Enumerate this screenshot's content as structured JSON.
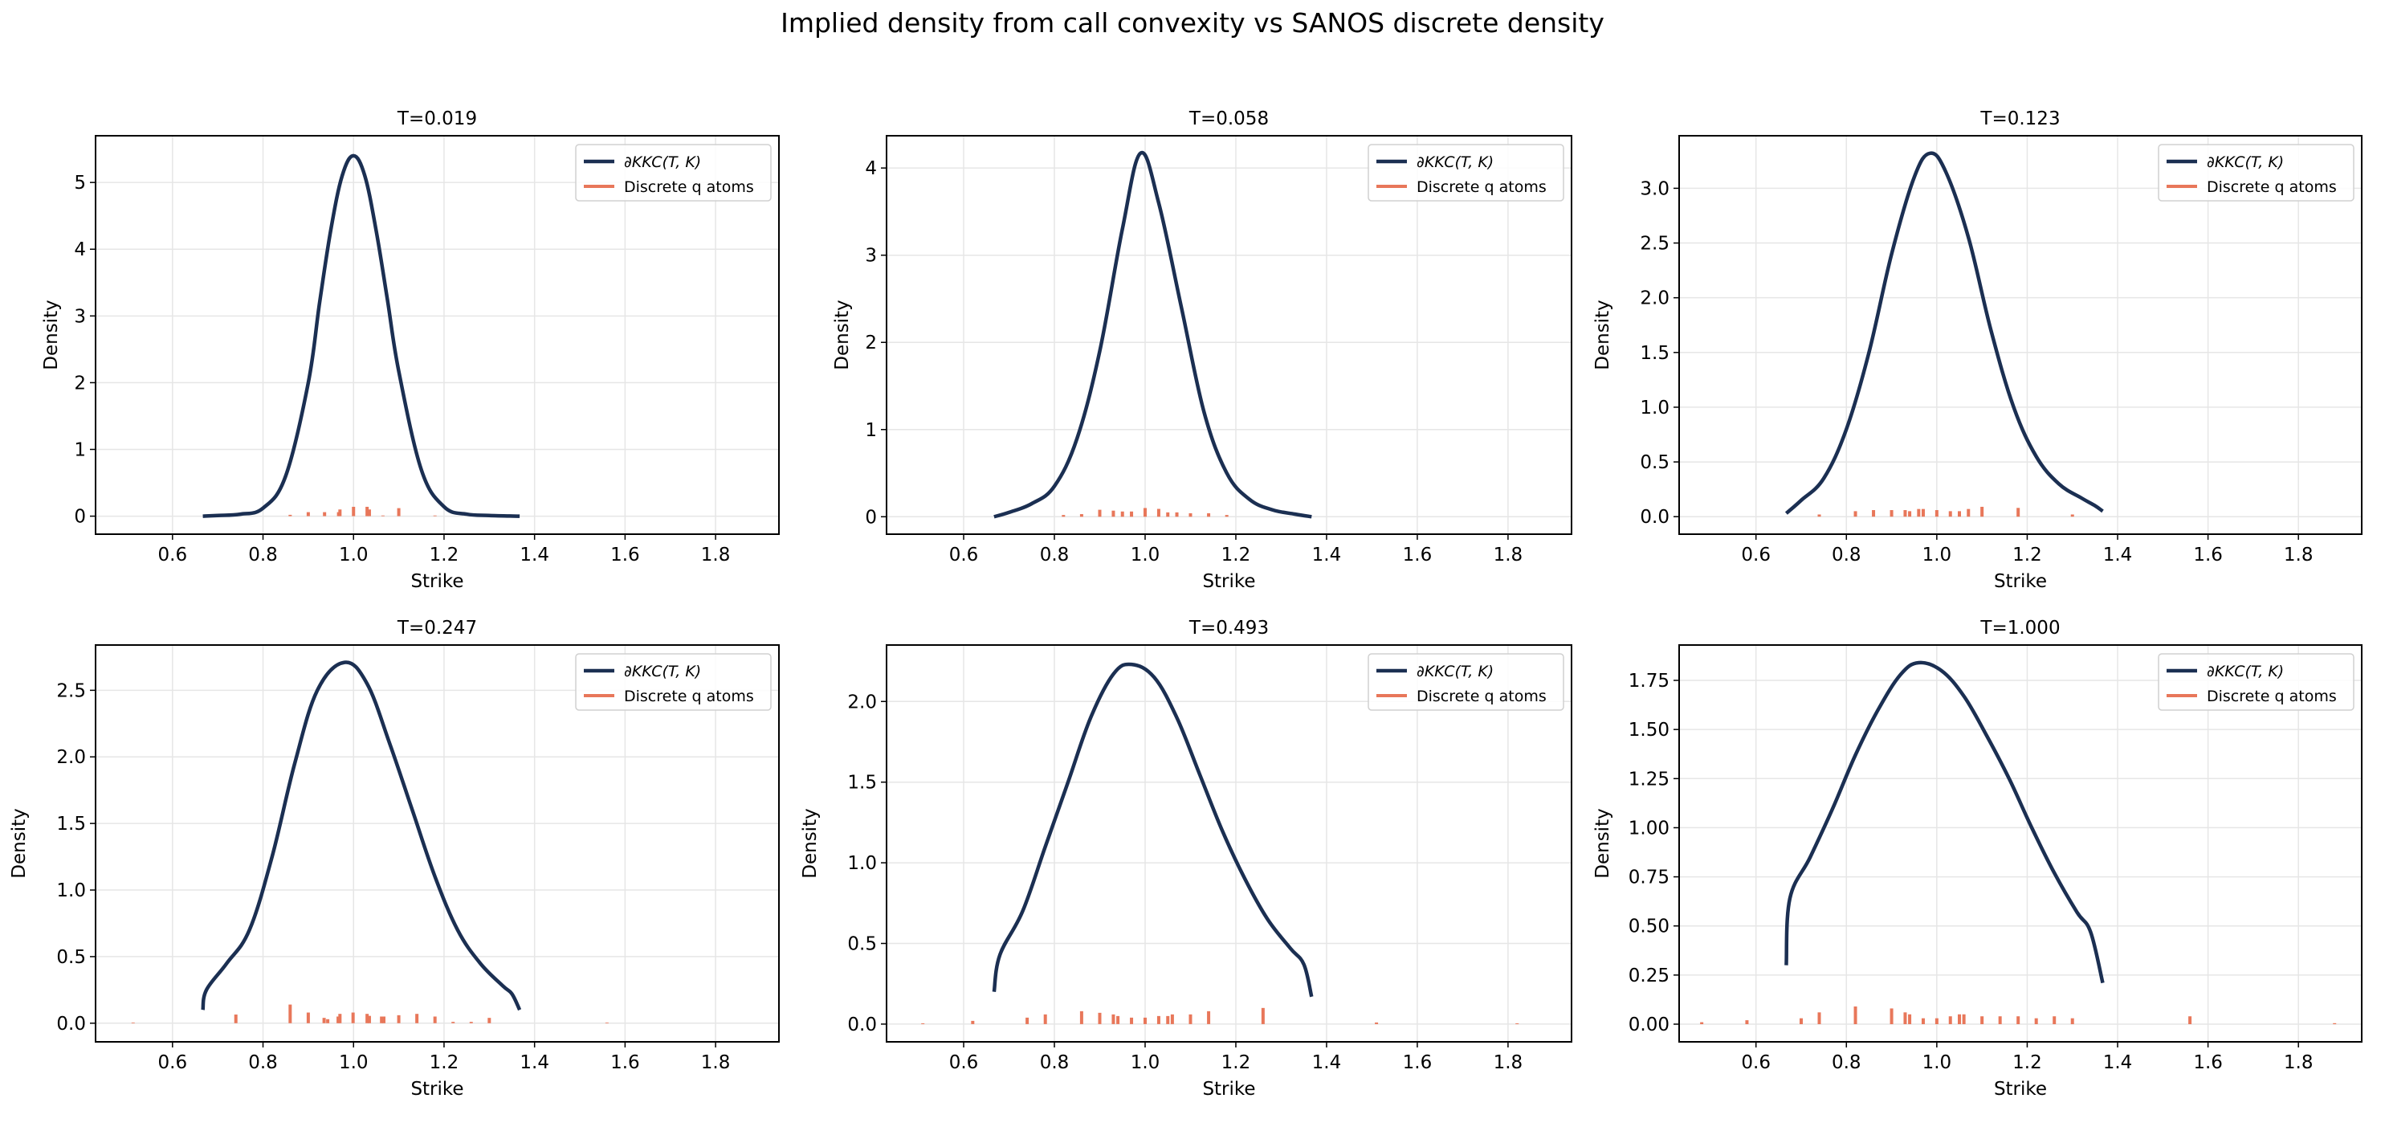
{
  "title": "Implied density from call convexity vs SANOS discrete density",
  "colors": {
    "curve": "#1b2f52",
    "atoms": "#e8775a",
    "grid": "#e6e6e6"
  },
  "chart_data": [
    {
      "type": "line",
      "title": "T=0.019",
      "xlabel": "Strike",
      "ylabel": "Density",
      "xlim": [
        0.43,
        1.94
      ],
      "ylim": [
        -0.27,
        5.7
      ],
      "xticks": [
        0.6,
        0.8,
        1.0,
        1.2,
        1.4,
        1.6,
        1.8
      ],
      "xtick_labels": [
        "0.6",
        "0.8",
        "1.0",
        "1.2",
        "1.4",
        "1.6",
        "1.8"
      ],
      "yticks": [
        0,
        1,
        2,
        3,
        4,
        5
      ],
      "ytick_labels": [
        "0",
        "1",
        "2",
        "3",
        "4",
        "5"
      ],
      "grid": true,
      "legend": "top-right",
      "legend_entries": [
        "∂KKC(T, K)",
        "Discrete q atoms"
      ],
      "curve": {
        "x": [
          0.667,
          0.7,
          0.75,
          0.8,
          0.85,
          0.9,
          0.925,
          0.95,
          0.975,
          1.0,
          1.025,
          1.05,
          1.075,
          1.1,
          1.15,
          1.2,
          1.25,
          1.3,
          1.367
        ],
        "y": [
          0.0,
          0.01,
          0.03,
          0.12,
          0.6,
          2.0,
          3.2,
          4.3,
          5.1,
          5.4,
          5.1,
          4.28,
          3.24,
          2.17,
          0.69,
          0.14,
          0.03,
          0.01,
          0.0
        ]
      },
      "atoms": {
        "x": [
          0.86,
          0.9,
          0.936,
          0.967,
          0.97,
          1.0,
          1.03,
          1.035,
          1.065,
          1.1,
          1.18
        ],
        "y": [
          0.02,
          0.06,
          0.06,
          0.06,
          0.1,
          0.14,
          0.14,
          0.1,
          0.01,
          0.12,
          0.01
        ]
      }
    },
    {
      "type": "line",
      "title": "T=0.058",
      "xlabel": "Strike",
      "ylabel": "Density",
      "xlim": [
        0.43,
        1.94
      ],
      "ylim": [
        -0.2,
        4.37
      ],
      "xticks": [
        0.6,
        0.8,
        1.0,
        1.2,
        1.4,
        1.6,
        1.8
      ],
      "xtick_labels": [
        "0.6",
        "0.8",
        "1.0",
        "1.2",
        "1.4",
        "1.6",
        "1.8"
      ],
      "yticks": [
        0,
        1,
        2,
        3,
        4
      ],
      "ytick_labels": [
        "0",
        "1",
        "2",
        "3",
        "4"
      ],
      "grid": true,
      "legend": "top-right",
      "legend_entries": [
        "∂KKC(T, K)",
        "Discrete q atoms"
      ],
      "curve": {
        "x": [
          0.667,
          0.7,
          0.75,
          0.8,
          0.85,
          0.9,
          0.95,
          0.99,
          1.03,
          1.08,
          1.13,
          1.18,
          1.23,
          1.28,
          1.33,
          1.367
        ],
        "y": [
          0.0,
          0.05,
          0.15,
          0.35,
          0.9,
          1.9,
          3.3,
          4.17,
          3.6,
          2.4,
          1.2,
          0.5,
          0.2,
          0.08,
          0.03,
          0.0
        ]
      },
      "atoms": {
        "x": [
          0.82,
          0.86,
          0.9,
          0.93,
          0.95,
          0.97,
          1.0,
          1.03,
          1.05,
          1.07,
          1.1,
          1.14,
          1.18
        ],
        "y": [
          0.02,
          0.03,
          0.08,
          0.07,
          0.06,
          0.06,
          0.1,
          0.09,
          0.05,
          0.05,
          0.04,
          0.04,
          0.02
        ]
      }
    },
    {
      "type": "line",
      "title": "T=0.123",
      "xlabel": "Strike",
      "ylabel": "Density",
      "xlim": [
        0.43,
        1.94
      ],
      "ylim": [
        -0.16,
        3.48
      ],
      "xticks": [
        0.6,
        0.8,
        1.0,
        1.2,
        1.4,
        1.6,
        1.8
      ],
      "xtick_labels": [
        "0.6",
        "0.8",
        "1.0",
        "1.2",
        "1.4",
        "1.6",
        "1.8"
      ],
      "yticks": [
        0,
        0.5,
        1,
        1.5,
        2,
        2.5,
        3
      ],
      "ytick_labels": [
        "0.0",
        "0.5",
        "1.0",
        "1.5",
        "2.0",
        "2.5",
        "3.0"
      ],
      "grid": true,
      "legend": "top-right",
      "legend_entries": [
        "∂KKC(T, K)",
        "Discrete q atoms"
      ],
      "curve": {
        "x": [
          0.667,
          0.7,
          0.75,
          0.8,
          0.85,
          0.9,
          0.95,
          0.985,
          1.02,
          1.07,
          1.12,
          1.17,
          1.22,
          1.27,
          1.32,
          1.35,
          1.367
        ],
        "y": [
          0.03,
          0.15,
          0.35,
          0.8,
          1.5,
          2.4,
          3.1,
          3.32,
          3.15,
          2.55,
          1.7,
          1.0,
          0.55,
          0.3,
          0.17,
          0.1,
          0.05
        ]
      },
      "atoms": {
        "x": [
          0.74,
          0.82,
          0.86,
          0.9,
          0.93,
          0.94,
          0.96,
          0.97,
          1.0,
          1.03,
          1.05,
          1.07,
          1.1,
          1.18,
          1.3
        ],
        "y": [
          0.02,
          0.05,
          0.06,
          0.06,
          0.06,
          0.05,
          0.07,
          0.07,
          0.06,
          0.05,
          0.05,
          0.07,
          0.09,
          0.08,
          0.02
        ]
      }
    },
    {
      "type": "line",
      "title": "T=0.247",
      "xlabel": "Strike",
      "ylabel": "Density",
      "xlim": [
        0.43,
        1.94
      ],
      "ylim": [
        -0.14,
        2.84
      ],
      "xticks": [
        0.6,
        0.8,
        1.0,
        1.2,
        1.4,
        1.6,
        1.8
      ],
      "xtick_labels": [
        "0.6",
        "0.8",
        "1.0",
        "1.2",
        "1.4",
        "1.6",
        "1.8"
      ],
      "yticks": [
        0,
        0.5,
        1,
        1.5,
        2,
        2.5
      ],
      "ytick_labels": [
        "0.0",
        "0.5",
        "1.0",
        "1.5",
        "2.0",
        "2.5"
      ],
      "grid": true,
      "legend": "top-right",
      "legend_entries": [
        "∂KKC(T, K)",
        "Discrete q atoms"
      ],
      "curve": {
        "x": [
          0.667,
          0.675,
          0.72,
          0.77,
          0.82,
          0.87,
          0.92,
          0.98,
          1.03,
          1.08,
          1.13,
          1.18,
          1.23,
          1.28,
          1.33,
          1.35,
          1.367
        ],
        "y": [
          0.1,
          0.25,
          0.45,
          0.7,
          1.25,
          1.95,
          2.5,
          2.71,
          2.55,
          2.1,
          1.6,
          1.1,
          0.7,
          0.45,
          0.28,
          0.22,
          0.1
        ]
      },
      "atoms": {
        "x": [
          0.513,
          0.74,
          0.86,
          0.9,
          0.935,
          0.943,
          0.966,
          0.97,
          0.999,
          1.03,
          1.035,
          1.062,
          1.067,
          1.1,
          1.14,
          1.18,
          1.22,
          1.26,
          1.3,
          1.56
        ],
        "y": [
          0.005,
          0.065,
          0.14,
          0.08,
          0.04,
          0.03,
          0.05,
          0.07,
          0.08,
          0.07,
          0.055,
          0.05,
          0.05,
          0.06,
          0.07,
          0.05,
          0.01,
          0.01,
          0.04,
          0.005
        ]
      }
    },
    {
      "type": "line",
      "title": "T=0.493",
      "xlabel": "Strike",
      "ylabel": "Density",
      "xlim": [
        0.43,
        1.94
      ],
      "ylim": [
        -0.11,
        2.35
      ],
      "xticks": [
        0.6,
        0.8,
        1.0,
        1.2,
        1.4,
        1.6,
        1.8
      ],
      "xtick_labels": [
        "0.6",
        "0.8",
        "1.0",
        "1.2",
        "1.4",
        "1.6",
        "1.8"
      ],
      "yticks": [
        0,
        0.5,
        1,
        1.5,
        2
      ],
      "ytick_labels": [
        "0.0",
        "0.5",
        "1.0",
        "1.5",
        "2.0"
      ],
      "grid": true,
      "legend": "top-right",
      "legend_entries": [
        "∂KKC(T, K)",
        "Discrete q atoms"
      ],
      "curve": {
        "x": [
          0.667,
          0.68,
          0.73,
          0.78,
          0.83,
          0.88,
          0.93,
          0.97,
          1.02,
          1.07,
          1.12,
          1.17,
          1.22,
          1.27,
          1.32,
          1.35,
          1.367
        ],
        "y": [
          0.2,
          0.43,
          0.7,
          1.1,
          1.5,
          1.9,
          2.17,
          2.23,
          2.15,
          1.9,
          1.55,
          1.2,
          0.9,
          0.65,
          0.47,
          0.37,
          0.17
        ]
      },
      "atoms": {
        "x": [
          0.51,
          0.62,
          0.74,
          0.78,
          0.86,
          0.9,
          0.93,
          0.94,
          0.97,
          1.0,
          1.03,
          1.05,
          1.06,
          1.1,
          1.14,
          1.26,
          1.51,
          1.82
        ],
        "y": [
          0.005,
          0.02,
          0.04,
          0.06,
          0.08,
          0.07,
          0.06,
          0.05,
          0.04,
          0.04,
          0.05,
          0.05,
          0.06,
          0.06,
          0.08,
          0.1,
          0.01,
          0.005
        ]
      }
    },
    {
      "type": "line",
      "title": "T=1.000",
      "xlabel": "Strike",
      "ylabel": "Density",
      "xlim": [
        0.43,
        1.94
      ],
      "ylim": [
        -0.09,
        1.93
      ],
      "xticks": [
        0.6,
        0.8,
        1.0,
        1.2,
        1.4,
        1.6,
        1.8
      ],
      "xtick_labels": [
        "0.6",
        "0.8",
        "1.0",
        "1.2",
        "1.4",
        "1.6",
        "1.8"
      ],
      "yticks": [
        0,
        0.25,
        0.5,
        0.75,
        1,
        1.25,
        1.5,
        1.75
      ],
      "ytick_labels": [
        "0.00",
        "0.25",
        "0.50",
        "0.75",
        "1.00",
        "1.25",
        "1.50",
        "1.75"
      ],
      "grid": true,
      "legend": "top-right",
      "legend_entries": [
        "∂KKC(T, K)",
        "Discrete q atoms"
      ],
      "curve": {
        "x": [
          0.667,
          0.675,
          0.72,
          0.77,
          0.82,
          0.87,
          0.92,
          0.96,
          1.01,
          1.06,
          1.11,
          1.16,
          1.21,
          1.26,
          1.31,
          1.34,
          1.367
        ],
        "y": [
          0.3,
          0.64,
          0.85,
          1.1,
          1.37,
          1.6,
          1.78,
          1.84,
          1.8,
          1.67,
          1.47,
          1.25,
          1.0,
          0.77,
          0.57,
          0.47,
          0.21
        ]
      },
      "atoms": {
        "x": [
          0.48,
          0.58,
          0.7,
          0.74,
          0.82,
          0.9,
          0.93,
          0.94,
          0.97,
          1.0,
          1.03,
          1.05,
          1.06,
          1.1,
          1.14,
          1.18,
          1.22,
          1.26,
          1.3,
          1.56,
          1.88
        ],
        "y": [
          0.01,
          0.02,
          0.03,
          0.06,
          0.09,
          0.08,
          0.06,
          0.05,
          0.03,
          0.03,
          0.04,
          0.05,
          0.05,
          0.04,
          0.04,
          0.04,
          0.03,
          0.04,
          0.03,
          0.04,
          0.005
        ]
      }
    }
  ]
}
